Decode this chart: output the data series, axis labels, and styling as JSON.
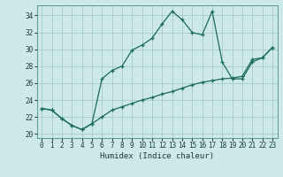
{
  "xlabel": "Humidex (Indice chaleur)",
  "ylabel": "",
  "xlim": [
    -0.5,
    23.5
  ],
  "ylim": [
    19.5,
    35.2
  ],
  "yticks": [
    20,
    22,
    24,
    26,
    28,
    30,
    32,
    34
  ],
  "xticks": [
    0,
    1,
    2,
    3,
    4,
    5,
    6,
    7,
    8,
    9,
    10,
    11,
    12,
    13,
    14,
    15,
    16,
    17,
    18,
    19,
    20,
    21,
    22,
    23
  ],
  "background_color": "#cce8e8",
  "grid_color": "#aacfcf",
  "line_color": "#1a6b5a",
  "line1_x": [
    0,
    1,
    2,
    3,
    4,
    5,
    6,
    7,
    8,
    9,
    10,
    11,
    12,
    13,
    14,
    15,
    16,
    17,
    18,
    19,
    20,
    21,
    22,
    23
  ],
  "line1_y": [
    23.0,
    22.8,
    21.8,
    21.0,
    20.5,
    21.2,
    26.5,
    27.5,
    28.0,
    29.9,
    30.5,
    31.3,
    33.0,
    34.5,
    33.5,
    32.0,
    31.7,
    34.5,
    28.5,
    26.5,
    26.5,
    28.5,
    29.0,
    30.2
  ],
  "line2_x": [
    0,
    1,
    2,
    3,
    4,
    5,
    6,
    7,
    8,
    9,
    10,
    11,
    12,
    13,
    14,
    15,
    16,
    17,
    18,
    19,
    20,
    21,
    22,
    23
  ],
  "line2_y": [
    23.0,
    22.8,
    21.8,
    21.0,
    20.5,
    21.2,
    22.0,
    22.8,
    23.2,
    23.6,
    24.0,
    24.3,
    24.7,
    25.0,
    25.4,
    25.8,
    26.1,
    26.3,
    26.5,
    26.6,
    26.8,
    28.8,
    29.0,
    30.2
  ]
}
